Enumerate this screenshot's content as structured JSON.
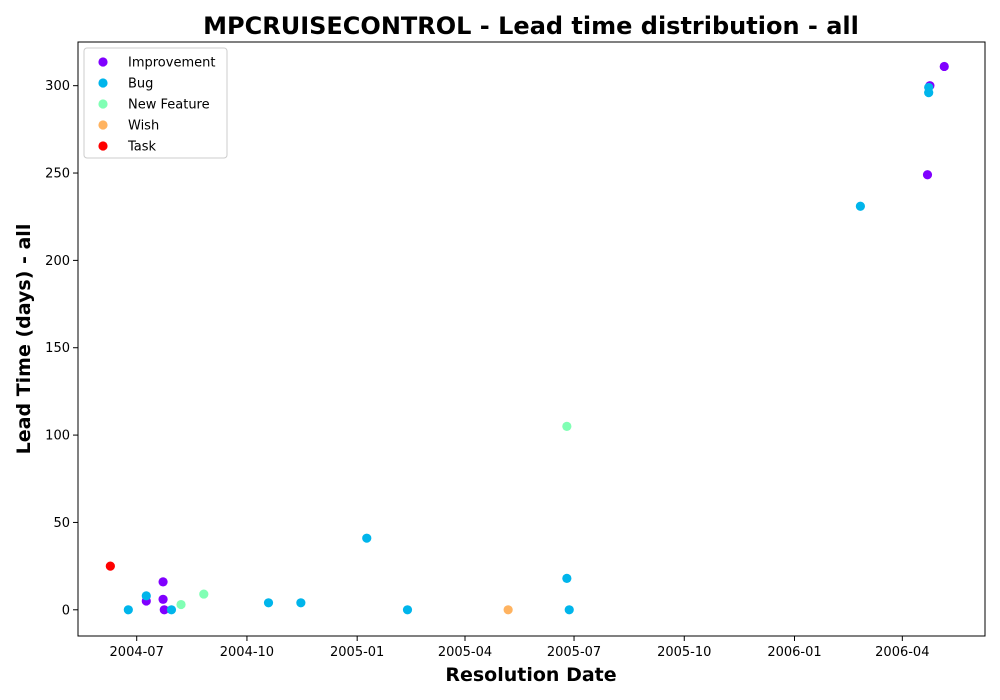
{
  "chart_data": {
    "type": "scatter",
    "title": "MPCRUISECONTROL - Lead time distribution - all",
    "xlabel": "Resolution Date",
    "ylabel": "Lead Time (days) - all",
    "x_ticks": [
      "2004-07",
      "2004-10",
      "2005-01",
      "2005-04",
      "2005-07",
      "2005-10",
      "2006-01",
      "2006-04"
    ],
    "y_ticks": [
      "0",
      "50",
      "100",
      "150",
      "200",
      "250",
      "300"
    ],
    "xlim": [
      "2004-05-13",
      "2006-06-09"
    ],
    "ylim": [
      -15,
      325
    ],
    "grid": false,
    "legend_position": "top-left",
    "series": [
      {
        "name": "Improvement",
        "color": "#8000ff",
        "points": [
          {
            "x": "2004-07-09",
            "y": 5
          },
          {
            "x": "2004-07-23",
            "y": 16
          },
          {
            "x": "2004-07-23",
            "y": 6
          },
          {
            "x": "2004-07-24",
            "y": 0
          },
          {
            "x": "2006-04-22",
            "y": 249
          },
          {
            "x": "2006-04-24",
            "y": 300
          },
          {
            "x": "2006-05-06",
            "y": 311
          }
        ]
      },
      {
        "name": "Bug",
        "color": "#00b5eb",
        "points": [
          {
            "x": "2004-06-24",
            "y": 0
          },
          {
            "x": "2004-07-09",
            "y": 8
          },
          {
            "x": "2004-07-30",
            "y": 0
          },
          {
            "x": "2004-10-19",
            "y": 4
          },
          {
            "x": "2004-11-15",
            "y": 4
          },
          {
            "x": "2005-01-09",
            "y": 41
          },
          {
            "x": "2005-02-12",
            "y": 0
          },
          {
            "x": "2005-06-25",
            "y": 18
          },
          {
            "x": "2005-06-27",
            "y": 0
          },
          {
            "x": "2006-02-25",
            "y": 231
          },
          {
            "x": "2006-04-23",
            "y": 296
          },
          {
            "x": "2006-04-23",
            "y": 299
          }
        ]
      },
      {
        "name": "New Feature",
        "color": "#80ffb4",
        "points": [
          {
            "x": "2004-08-07",
            "y": 3
          },
          {
            "x": "2004-08-26",
            "y": 9
          },
          {
            "x": "2005-06-25",
            "y": 105
          }
        ]
      },
      {
        "name": "Wish",
        "color": "#ffb360",
        "points": [
          {
            "x": "2005-05-07",
            "y": 0
          }
        ]
      },
      {
        "name": "Task",
        "color": "#ff0000",
        "points": [
          {
            "x": "2004-06-09",
            "y": 25
          }
        ]
      }
    ]
  }
}
